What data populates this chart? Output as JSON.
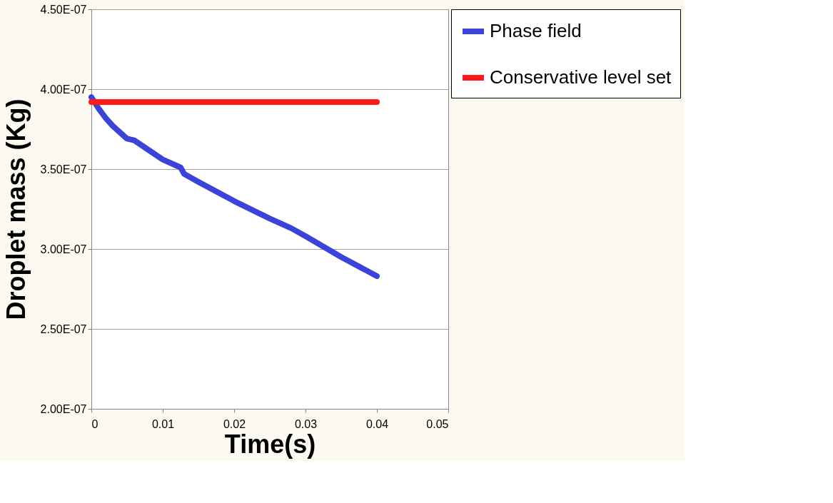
{
  "chart_data": {
    "type": "line",
    "xlabel": "Time(s)",
    "ylabel": "Droplet mass (Kg)",
    "xlim": [
      0,
      0.05
    ],
    "xticks": [
      0,
      0.01,
      0.02,
      0.03,
      0.04,
      0.05
    ],
    "ylim": [
      2e-07,
      4.5e-07
    ],
    "yticks": [
      {
        "value": 2e-07,
        "label": "2.00E-07"
      },
      {
        "value": 2.5e-07,
        "label": "2.50E-07"
      },
      {
        "value": 3e-07,
        "label": "3.00E-07"
      },
      {
        "value": 3.5e-07,
        "label": "3.50E-07"
      },
      {
        "value": 4e-07,
        "label": "4.00E-07"
      },
      {
        "value": 4.5e-07,
        "label": "4.50E-07"
      }
    ],
    "grid": "y",
    "legend": "right",
    "line_style": "solid",
    "series": [
      {
        "name": "Phase field",
        "color": "#3b44d6",
        "x": [
          0,
          0.001,
          0.002,
          0.003,
          0.004,
          0.005,
          0.006,
          0.008,
          0.01,
          0.012,
          0.0125,
          0.013,
          0.015,
          0.02,
          0.025,
          0.028,
          0.03,
          0.035,
          0.04
        ],
        "values": [
          3.95e-07,
          3.88e-07,
          3.82e-07,
          3.77e-07,
          3.73e-07,
          3.69e-07,
          3.68e-07,
          3.62e-07,
          3.56e-07,
          3.52e-07,
          3.51e-07,
          3.47e-07,
          3.42e-07,
          3.3e-07,
          3.19e-07,
          3.13e-07,
          3.08e-07,
          2.95e-07,
          2.83e-07
        ]
      },
      {
        "name": "Conservative level set",
        "color": "#ff1a1a",
        "x": [
          0,
          0.04
        ],
        "values": [
          3.92e-07,
          3.92e-07
        ]
      }
    ]
  }
}
